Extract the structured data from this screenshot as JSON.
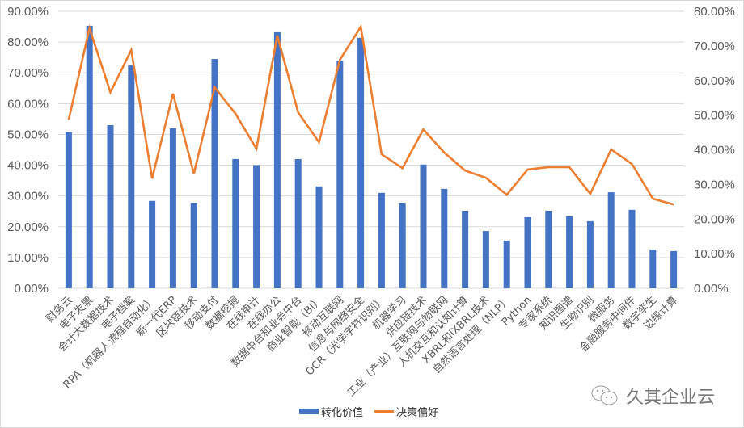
{
  "chart_data": {
    "type": "bar+line",
    "title": "",
    "xlabel": "",
    "ylabel": "",
    "categories": [
      "财务云",
      "电子发票",
      "会计大数据技术",
      "电子档案",
      "RPA（机器人流程自动化）",
      "新一代ERP",
      "区块链技术",
      "移动支付",
      "数据挖掘",
      "在线审计",
      "在线办公",
      "数据中台和业务中台",
      "商业智能（BI）",
      "移动互联网",
      "信息与网络安全",
      "OCR（光学字符识别）",
      "机器学习",
      "供应链技术",
      "工业（产业）互联网与物联网",
      "人机交互和认知计算",
      "XBRL和iXBRL技术",
      "自然语言处理（NLP）",
      "Python",
      "专家系统",
      "知识图谱",
      "生物识别",
      "微服务",
      "金融服务中间件",
      "数字孪生",
      "边缘计算"
    ],
    "series": [
      {
        "name": "转化价值",
        "type": "bar",
        "axis": "left",
        "color": "#4472c4",
        "values": [
          50.7,
          85.3,
          53.0,
          72.4,
          28.4,
          52.0,
          27.8,
          74.5,
          42.0,
          40.0,
          83.2,
          42.0,
          33.1,
          74.0,
          81.4,
          31.0,
          27.8,
          40.2,
          32.3,
          25.2,
          18.6,
          15.5,
          23.1,
          25.2,
          23.4,
          21.8,
          31.2,
          25.5,
          12.6,
          12.1
        ]
      },
      {
        "name": "决策偏好",
        "type": "line",
        "axis": "right",
        "color": "#ed7d31",
        "values": [
          48.7,
          75.1,
          56.6,
          68.8,
          31.7,
          56.2,
          33.1,
          58.0,
          50.4,
          40.3,
          73.0,
          50.8,
          42.2,
          66.0,
          75.5,
          38.7,
          34.7,
          45.9,
          39.2,
          34.0,
          31.9,
          27.0,
          34.3,
          35.0,
          35.0,
          27.3,
          40.1,
          35.9,
          25.9,
          24.2
        ]
      }
    ],
    "y_left": {
      "ylim": [
        0,
        90
      ],
      "ticks": [
        "0.00%",
        "10.00%",
        "20.00%",
        "30.00%",
        "40.00%",
        "50.00%",
        "60.00%",
        "70.00%",
        "80.00%",
        "90.00%"
      ]
    },
    "y_right": {
      "ylim": [
        0,
        80
      ],
      "ticks": [
        "0.00%",
        "10.00%",
        "20.00%",
        "30.00%",
        "40.00%",
        "50.00%",
        "60.00%",
        "70.00%",
        "80.00%"
      ]
    },
    "grid": true,
    "legend_position": "bottom"
  },
  "legend": {
    "bar_label": "转化价值",
    "line_label": "决策偏好"
  },
  "watermark": {
    "text": "久其企业云",
    "icon": "wechat-icon"
  }
}
